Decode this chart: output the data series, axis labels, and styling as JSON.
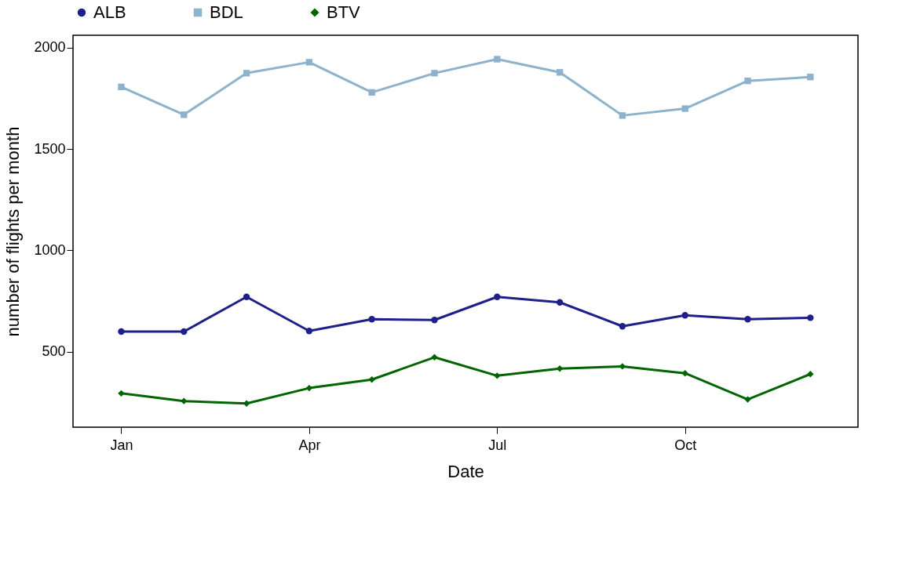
{
  "chart_data": {
    "type": "line",
    "xlabel": "Date",
    "ylabel": "number of flights per month",
    "categories": [
      "Jan",
      null,
      null,
      "Apr",
      null,
      null,
      "Jul",
      null,
      null,
      "Oct",
      null,
      null
    ],
    "series": [
      {
        "name": "ALB",
        "color": "#1f1f8c",
        "marker": "circle",
        "values": [
          599,
          599,
          770,
          602,
          660,
          656,
          770,
          743,
          625,
          679,
          660,
          667
        ]
      },
      {
        "name": "BDL",
        "color": "#8db3cc",
        "marker": "square",
        "values": [
          1806,
          1669,
          1874,
          1928,
          1779,
          1874,
          1943,
          1878,
          1665,
          1699,
          1836,
          1855
        ]
      },
      {
        "name": "BTV",
        "color": "#006400",
        "marker": "diamond",
        "values": [
          294,
          256,
          244,
          320,
          362,
          472,
          381,
          416,
          427,
          393,
          264,
          389
        ]
      }
    ],
    "ylim": [
      127,
      2061
    ],
    "yticks": [
      500,
      1000,
      1500,
      2000
    ],
    "grid": false,
    "legend": "top",
    "line_style": "solid"
  }
}
